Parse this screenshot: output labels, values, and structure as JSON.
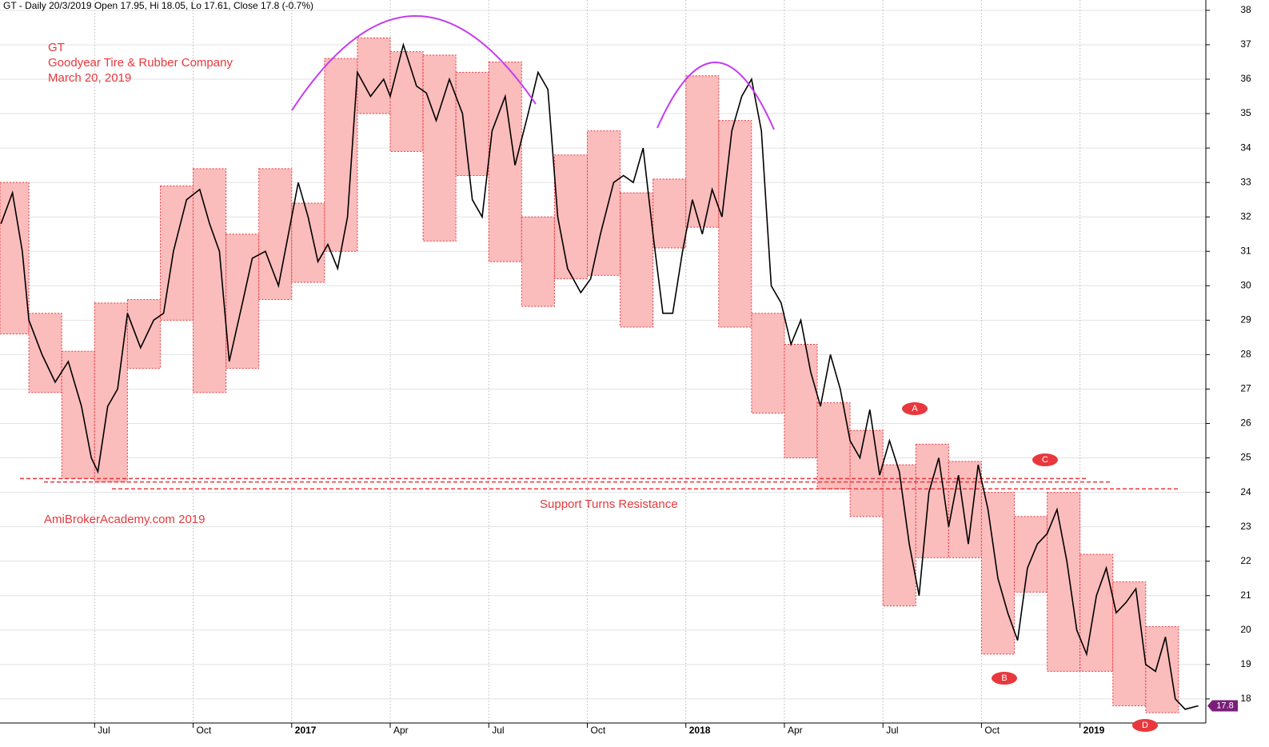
{
  "chart_data": {
    "type": "line",
    "header": "GT - Daily 20/3/2019 Open 17.95, Hi 18.05, Lo 17.61, Close 17.8 (-0.7%)",
    "title": "GT",
    "subtitle": "Goodyear Tire & Rubber Company",
    "date": "March 20, 2019",
    "watermark": "AmiBrokerAcademy.com  2019",
    "annotation": "Support Turns Resistance",
    "markers": [
      "A",
      "B",
      "C",
      "D"
    ],
    "last_price": 17.8,
    "support_levels": [
      24.4,
      24.3,
      24.1
    ],
    "ylim": [
      17.3,
      38.3
    ],
    "yticks": [
      18,
      19,
      20,
      21,
      22,
      23,
      24,
      25,
      26,
      27,
      28,
      29,
      30,
      31,
      32,
      33,
      34,
      35,
      36,
      37,
      38
    ],
    "xlim": [
      0.12,
      36.83
    ],
    "xticks": [
      {
        "value": 3,
        "label": "Jul"
      },
      {
        "value": 6,
        "label": "Oct"
      },
      {
        "value": 9,
        "label": "2017"
      },
      {
        "value": 12,
        "label": "Apr"
      },
      {
        "value": 15,
        "label": "Jul"
      },
      {
        "value": 18,
        "label": "Oct"
      },
      {
        "value": 21,
        "label": "2018"
      },
      {
        "value": 24,
        "label": "Apr"
      },
      {
        "value": 27,
        "label": "Jul"
      },
      {
        "value": 30,
        "label": "Oct"
      },
      {
        "value": 33,
        "label": "2019"
      }
    ],
    "grid": true,
    "box_color": "#fbbcbc",
    "box_high": [
      33,
      29.2,
      28.1,
      29.5,
      29.6,
      32.9,
      33.4,
      31.5,
      33.4,
      32.4,
      36.6,
      37.2,
      36.8,
      36.7,
      36.2,
      36.5,
      32.0,
      33.8,
      34.5,
      32.7,
      33.1,
      36.1,
      34.8,
      29.2,
      28.3,
      26.6,
      25.8,
      24.8,
      25.4,
      24.9,
      24.0,
      23.3,
      24.0,
      22.2,
      21.4,
      20.1
    ],
    "box_low": [
      28.6,
      26.9,
      24.4,
      24.3,
      27.6,
      29.0,
      26.9,
      27.6,
      29.6,
      30.1,
      31.0,
      35.0,
      33.9,
      31.3,
      33.2,
      30.7,
      29.4,
      30.2,
      30.3,
      28.8,
      31.1,
      31.7,
      28.8,
      26.3,
      25.0,
      24.1,
      23.3,
      20.7,
      22.1,
      22.1,
      19.3,
      21.1,
      18.8,
      18.8,
      17.8,
      17.6
    ],
    "x": [
      0.15,
      0.5,
      0.8,
      1.0,
      1.4,
      1.8,
      2.2,
      2.6,
      2.9,
      3.1,
      3.4,
      3.7,
      4.0,
      4.4,
      4.8,
      5.1,
      5.4,
      5.8,
      6.2,
      6.5,
      6.8,
      7.1,
      7.5,
      7.8,
      8.2,
      8.6,
      8.9,
      9.2,
      9.5,
      9.8,
      10.1,
      10.4,
      10.7,
      11.0,
      11.4,
      11.8,
      12.0,
      12.4,
      12.8,
      13.1,
      13.4,
      13.8,
      14.2,
      14.5,
      14.8,
      15.1,
      15.5,
      15.8,
      16.2,
      16.5,
      16.8,
      17.1,
      17.4,
      17.8,
      18.1,
      18.4,
      18.8,
      19.1,
      19.4,
      19.7,
      20.0,
      20.3,
      20.6,
      20.9,
      21.2,
      21.5,
      21.8,
      22.1,
      22.4,
      22.7,
      23.0,
      23.3,
      23.6,
      23.9,
      24.2,
      24.5,
      24.8,
      25.1,
      25.4,
      25.7,
      26.0,
      26.3,
      26.6,
      26.9,
      27.2,
      27.5,
      27.8,
      28.1,
      28.4,
      28.7,
      29.0,
      29.3,
      29.6,
      29.9,
      30.2,
      30.5,
      30.8,
      31.1,
      31.4,
      31.7,
      32.0,
      32.3,
      32.6,
      32.9,
      33.2,
      33.5,
      33.8,
      34.1,
      34.4,
      34.7,
      35.0,
      35.3,
      35.6,
      35.9,
      36.2,
      36.6
    ],
    "series": [
      {
        "color": "#000000",
        "values": [
          31.8,
          32.7,
          31.0,
          29.0,
          28.0,
          27.2,
          27.8,
          26.5,
          25.0,
          24.6,
          26.5,
          27.0,
          29.2,
          28.2,
          29.0,
          29.2,
          31.0,
          32.5,
          32.8,
          31.8,
          31.0,
          27.8,
          29.5,
          30.8,
          31.0,
          30.0,
          31.5,
          33.0,
          32.0,
          30.7,
          31.2,
          30.5,
          32.0,
          36.2,
          35.5,
          36.0,
          35.5,
          37.0,
          35.8,
          35.6,
          34.8,
          36.0,
          35.0,
          32.5,
          32.0,
          34.5,
          35.5,
          33.5,
          35.0,
          36.2,
          35.7,
          32.0,
          30.5,
          29.8,
          30.2,
          31.5,
          33.0,
          33.2,
          33.0,
          34.0,
          31.5,
          29.2,
          29.2,
          31.0,
          32.5,
          31.5,
          32.8,
          32.0,
          34.5,
          35.5,
          36.0,
          34.5,
          30.0,
          29.5,
          28.3,
          29.0,
          27.5,
          26.5,
          28.0,
          27.0,
          25.5,
          25.0,
          26.4,
          24.5,
          25.5,
          24.6,
          22.5,
          21.0,
          24.0,
          25.0,
          23.0,
          24.5,
          22.5,
          24.8,
          23.5,
          21.5,
          20.5,
          19.7,
          21.8,
          22.5,
          22.8,
          23.5,
          22.0,
          20.0,
          19.3,
          21.0,
          21.8,
          20.5,
          20.8,
          21.2,
          19.0,
          18.8,
          19.8,
          18.0,
          17.7,
          17.8
        ]
      }
    ]
  }
}
